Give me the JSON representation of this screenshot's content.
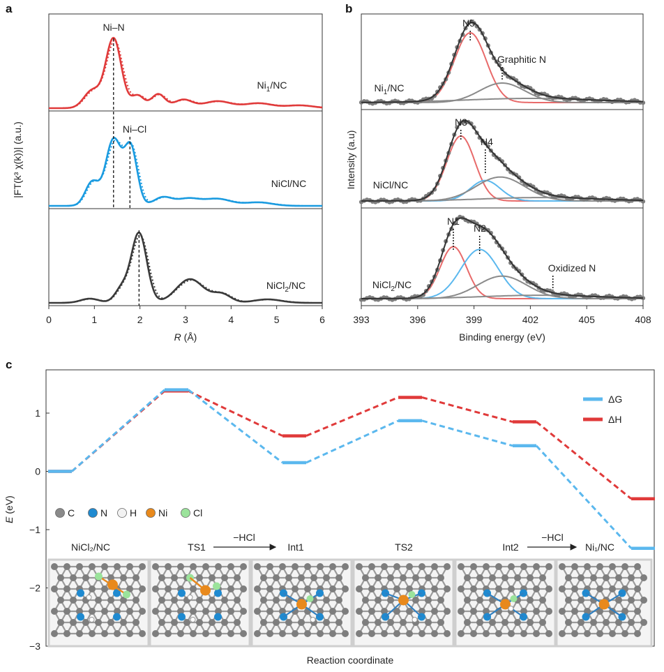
{
  "panel_labels": {
    "a": "a",
    "b": "b",
    "c": "c"
  },
  "chart_data": [
    {
      "type": "line",
      "panel": "a",
      "xlabel_sym": "R",
      "xlabel_unit": " (Å)",
      "ylabel": "|FT(k³ χ(k))| (a.u.)",
      "xlim": [
        0,
        6
      ],
      "xticks": [
        "0",
        "1",
        "2",
        "3",
        "4",
        "5",
        "6"
      ],
      "subplots": [
        {
          "label_main": "Ni",
          "label_sub": "1",
          "label_tail": "/NC",
          "color": "#e03a3a",
          "annotations": [
            {
              "text": "Ni–N",
              "x": 1.42
            }
          ]
        },
        {
          "label_main": "NiCl/NC",
          "label_sub": "",
          "label_tail": "",
          "color": "#1a9be0",
          "annotations": [
            {
              "text": "Ni–Cl",
              "x": 1.78
            }
          ]
        },
        {
          "label_main": "NiCl",
          "label_sub": "2",
          "label_tail": "/NC",
          "color": "#3a3a3a",
          "annotations": []
        }
      ],
      "dashed_markers_x": [
        1.42,
        1.78,
        1.98
      ]
    },
    {
      "type": "scatter",
      "panel": "b",
      "xlabel": "Binding energy (eV)",
      "ylabel": "Intensity (a.u)",
      "xlim": [
        393,
        408
      ],
      "xticks": [
        "393",
        "396",
        "399",
        "402",
        "405",
        "408"
      ],
      "subplots": [
        {
          "label_main": "Ni",
          "label_sub": "1",
          "label_tail": "/NC",
          "peaks": [
            {
              "name": "N5",
              "center": 398.8
            },
            {
              "name": "Graphitic N",
              "center": 400.5
            }
          ]
        },
        {
          "label_main": "NiCl/NC",
          "label_sub": "",
          "label_tail": "",
          "peaks": [
            {
              "name": "N3",
              "center": 398.3
            },
            {
              "name": "N4",
              "center": 399.6
            }
          ]
        },
        {
          "label_main": "NiCl",
          "label_sub": "2",
          "label_tail": "/NC",
          "peaks": [
            {
              "name": "N1",
              "center": 397.9
            },
            {
              "name": "N2",
              "center": 399.3
            },
            {
              "name": "Oxidized N",
              "center": 403.2
            }
          ]
        }
      ]
    },
    {
      "type": "line",
      "panel": "c",
      "xlabel": "Reaction coordinate",
      "ylabel_sym": "E",
      "ylabel_unit": " (eV)",
      "ylim": [
        -3,
        1.5
      ],
      "yticks": [
        1,
        0,
        -1,
        -2,
        -3
      ],
      "ytick_labels": [
        "1",
        "0",
        "−1",
        "−2",
        "−3"
      ],
      "states": [
        "NiCl₂/NC",
        "TS1",
        "Int1",
        "TS2",
        "Int2",
        "Ni₁/NC"
      ],
      "arrows": [
        {
          "label": "−HCl",
          "from": "TS1",
          "to": "Int1"
        },
        {
          "label": "−HCl",
          "from": "Int2",
          "to": "Ni₁/NC"
        }
      ],
      "series": [
        {
          "name": "ΔG",
          "color": "#5bb8ee",
          "values": [
            0,
            1.4,
            0.15,
            0.87,
            0.44,
            -1.32
          ]
        },
        {
          "name": "ΔH",
          "color": "#e03a3a",
          "values": [
            0,
            1.38,
            0.61,
            1.27,
            0.85,
            -0.47
          ]
        }
      ],
      "atom_legend": [
        {
          "symbol": "C",
          "color": "#8a8a8a"
        },
        {
          "symbol": "N",
          "color": "#1f8ad0"
        },
        {
          "symbol": "H",
          "color": "#f2f2f2"
        },
        {
          "symbol": "Ni",
          "color": "#e8891c"
        },
        {
          "symbol": "Cl",
          "color": "#9be39b"
        }
      ]
    }
  ]
}
